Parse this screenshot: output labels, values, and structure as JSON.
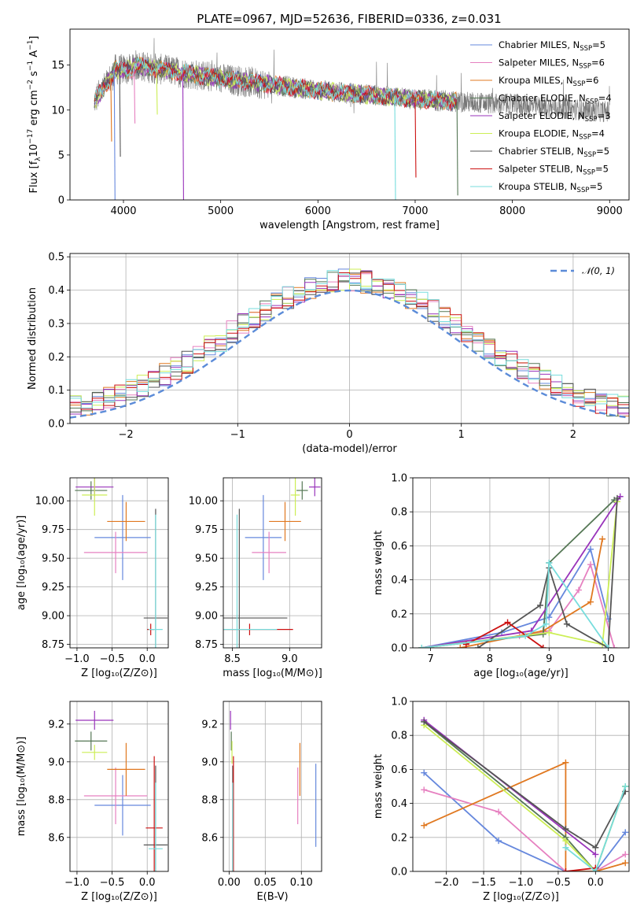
{
  "figure": {
    "title": "PLATE=0967, MJD=52636, FIBERID=0336, z=0.031"
  },
  "colors": [
    "#6688dd",
    "#e680c0",
    "#e07820",
    "#557755",
    "#9933bb",
    "#ccee55",
    "#555555",
    "#cc1111",
    "#77dddd"
  ],
  "chart_data": [
    {
      "id": "spectrum",
      "type": "line",
      "xlabel": "wavelength [Angstrom, rest frame]",
      "ylabel": "Flux [fλ10⁻¹⁷ erg cm⁻² s⁻¹ A⁻¹]",
      "ylabel_parts": {
        "a": "Flux [f",
        "b": "λ",
        "c": "10",
        "d": "−17",
        "e": " erg cm",
        "f": "−2",
        "g": " s",
        "h": "−1",
        "i": " A",
        "j": "−1",
        "k": "]"
      },
      "xlim": [
        3450,
        9200
      ],
      "ylim": [
        0,
        19
      ],
      "xticks": [
        4000,
        5000,
        6000,
        7000,
        8000,
        9000
      ],
      "yticks": [
        0,
        5,
        10,
        15
      ],
      "data_range": [
        3700,
        9000
      ],
      "model_range": [
        3700,
        7430
      ],
      "legend_position": "upper right",
      "legend": [
        {
          "name": "Chabrier MILES, N",
          "sub": "SSP",
          "eq": "=5"
        },
        {
          "name": "Salpeter MILES, N",
          "sub": "SSP",
          "eq": "=6"
        },
        {
          "name": "Kroupa MILES, N",
          "sub": "SSP",
          "eq": "=6"
        },
        {
          "name": "Chabrier ELODIE, N",
          "sub": "SSP",
          "eq": "=4"
        },
        {
          "name": "Salpeter ELODIE, N",
          "sub": "SSP",
          "eq": "=3"
        },
        {
          "name": "Kroupa ELODIE, N",
          "sub": "SSP",
          "eq": "=4"
        },
        {
          "name": "Chabrier STELIB, N",
          "sub": "SSP",
          "eq": "=5"
        },
        {
          "name": "Salpeter STELIB, N",
          "sub": "SSP",
          "eq": "=5"
        },
        {
          "name": "Kroupa STELIB, N",
          "sub": "SSP",
          "eq": "=5"
        }
      ]
    },
    {
      "id": "residuals",
      "type": "step",
      "xlabel": "(data-model)/error",
      "ylabel": "Normed distribution",
      "xlim": [
        -2.5,
        2.5
      ],
      "ylim": [
        0,
        0.51
      ],
      "xticks": [
        -2,
        -1,
        0,
        1,
        2
      ],
      "yticks": [
        0.0,
        0.1,
        0.2,
        0.3,
        0.4,
        0.5
      ],
      "grid": true,
      "legend": "𝒩(0, 1)",
      "legend_position": "upper right",
      "bin_width": 0.1
    },
    {
      "id": "age_vs_Z",
      "type": "errorbar",
      "xlabel": "Z [log₁₀(Z/Z⊙)]",
      "ylabel": "age  [log₁₀(age/yr)]",
      "xlim": [
        -1.1,
        0.3
      ],
      "ylim": [
        8.72,
        10.2
      ],
      "xticks": [
        -1.0,
        -0.5,
        0.0
      ],
      "yticks": [
        8.75,
        9.0,
        9.25,
        9.5,
        9.75,
        10.0
      ],
      "grid": true,
      "points": [
        {
          "x": -0.35,
          "xerr": 0.4,
          "y": 9.68,
          "yerr": 0.37
        },
        {
          "x": -0.45,
          "xerr": 0.45,
          "y": 9.55,
          "yerr": 0.18
        },
        {
          "x": -0.3,
          "xerr": 0.27,
          "y": 9.82,
          "yerr": 0.17
        },
        {
          "x": -0.8,
          "xerr": 0.23,
          "y": 10.09,
          "yerr": 0.08
        },
        {
          "x": -0.75,
          "xerr": 0.27,
          "y": 10.12,
          "yerr": 0.08
        },
        {
          "x": -0.75,
          "xerr": 0.18,
          "y": 10.05,
          "yerr": 0.18
        },
        {
          "x": 0.12,
          "xerr": 0.17,
          "y": 8.98,
          "yerr": 0.95
        },
        {
          "x": 0.05,
          "xerr": 0.05,
          "y": 8.88,
          "yerr": 0.05
        },
        {
          "x": 0.12,
          "xerr": 0.1,
          "y": 8.88,
          "yerr": 1.0
        }
      ]
    },
    {
      "id": "age_vs_mass",
      "type": "errorbar",
      "xlabel": "mass [log₁₀(M/M⊙)]",
      "ylabel": "",
      "xlim": [
        8.42,
        9.28
      ],
      "ylim": [
        8.72,
        10.2
      ],
      "xticks": [
        8.5,
        9.0
      ],
      "yticks": [
        8.75,
        9.0,
        9.25,
        9.5,
        9.75,
        10.0
      ],
      "grid": true,
      "points": [
        {
          "x": 8.77,
          "xerr": 0.16,
          "y": 9.68,
          "yerr": 0.37
        },
        {
          "x": 8.82,
          "xerr": 0.15,
          "y": 9.55,
          "yerr": 0.18
        },
        {
          "x": 8.96,
          "xerr": 0.14,
          "y": 9.82,
          "yerr": 0.17
        },
        {
          "x": 9.11,
          "xerr": 0.05,
          "y": 10.09,
          "yerr": 0.08
        },
        {
          "x": 9.22,
          "xerr": 0.05,
          "y": 10.12,
          "yerr": 0.08
        },
        {
          "x": 9.05,
          "xerr": 0.04,
          "y": 10.05,
          "yerr": 0.18
        },
        {
          "x": 8.56,
          "xerr": 0.42,
          "y": 8.98,
          "yerr": 0.95
        },
        {
          "x": 8.65,
          "xerr": 0.38,
          "y": 8.88,
          "yerr": 0.05
        },
        {
          "x": 8.54,
          "xerr": 0.35,
          "y": 8.88,
          "yerr": 1.0
        }
      ]
    },
    {
      "id": "weight_vs_age",
      "type": "line",
      "xlabel": "age  [log₁₀(age/yr)]",
      "ylabel": "mass weight",
      "xlim": [
        6.7,
        10.35
      ],
      "ylim": [
        0,
        1.0
      ],
      "xticks": [
        7,
        8,
        9,
        10
      ],
      "yticks": [
        0.0,
        0.2,
        0.4,
        0.6,
        0.8,
        1.0
      ],
      "grid": true,
      "series": [
        {
          "x": [
            6.85,
            8.2,
            9.0,
            9.7,
            10.0
          ],
          "y": [
            0.0,
            0.09,
            0.18,
            0.58,
            0.17
          ]
        },
        {
          "x": [
            6.85,
            8.5,
            9.0,
            9.5,
            9.7,
            10.1
          ],
          "y": [
            0.0,
            0.07,
            0.1,
            0.34,
            0.49,
            0.0
          ]
        },
        {
          "x": [
            7.5,
            8.9,
            9.7,
            9.9
          ],
          "y": [
            0.0,
            0.1,
            0.27,
            0.64
          ]
        },
        {
          "x": [
            6.85,
            8.9,
            9.0,
            10.1
          ],
          "y": [
            0.0,
            0.08,
            0.5,
            0.87
          ]
        },
        {
          "x": [
            6.85,
            8.7,
            10.2
          ],
          "y": [
            0.0,
            0.1,
            0.89
          ]
        },
        {
          "x": [
            6.85,
            9.0,
            9.9,
            10.15
          ],
          "y": [
            0.0,
            0.09,
            0.02,
            0.86
          ]
        },
        {
          "x": [
            7.8,
            8.85,
            9.0,
            9.3,
            10.0,
            10.15
          ],
          "y": [
            0.0,
            0.25,
            0.47,
            0.14,
            0.0,
            0.88
          ]
        },
        {
          "x": [
            7.6,
            8.3,
            8.9
          ],
          "y": [
            0.02,
            0.15,
            0.0
          ]
        },
        {
          "x": [
            6.85,
            8.6,
            8.95,
            9.0,
            10.0
          ],
          "y": [
            0.0,
            0.07,
            0.14,
            0.5,
            0.0
          ]
        }
      ]
    },
    {
      "id": "mass_vs_Z",
      "type": "errorbar",
      "xlabel": "Z [log₁₀(Z/Z⊙)]",
      "ylabel": "mass [log₁₀(M/M⊙)]",
      "xlim": [
        -1.1,
        0.3
      ],
      "ylim": [
        8.42,
        9.32
      ],
      "xticks": [
        -1.0,
        -0.5,
        0.0
      ],
      "yticks": [
        8.6,
        8.8,
        9.0,
        9.2
      ],
      "grid": true,
      "points": [
        {
          "x": -0.35,
          "xerr": 0.4,
          "y": 8.77,
          "yerr": 0.16
        },
        {
          "x": -0.45,
          "xerr": 0.45,
          "y": 8.82,
          "yerr": 0.15
        },
        {
          "x": -0.3,
          "xerr": 0.27,
          "y": 8.96,
          "yerr": 0.14
        },
        {
          "x": -0.8,
          "xerr": 0.23,
          "y": 9.11,
          "yerr": 0.05
        },
        {
          "x": -0.75,
          "xerr": 0.27,
          "y": 9.22,
          "yerr": 0.05
        },
        {
          "x": -0.75,
          "xerr": 0.18,
          "y": 9.05,
          "yerr": 0.04
        },
        {
          "x": 0.12,
          "xerr": 0.17,
          "y": 8.56,
          "yerr": 0.42
        },
        {
          "x": 0.1,
          "xerr": 0.12,
          "y": 8.65,
          "yerr": 0.38
        },
        {
          "x": 0.12,
          "xerr": 0.1,
          "y": 8.54,
          "yerr": 0.35
        }
      ]
    },
    {
      "id": "mass_vs_ebv",
      "type": "errorbar",
      "xlabel": "E(B-V)",
      "ylabel": "",
      "xlim": [
        -0.008,
        0.128
      ],
      "ylim": [
        8.42,
        9.32
      ],
      "xticks": [
        0.0,
        0.05,
        0.1
      ],
      "yticks": [
        8.6,
        8.8,
        9.0,
        9.2
      ],
      "grid": true,
      "points": [
        {
          "x": 0.12,
          "y": 8.77,
          "yerr": 0.22
        },
        {
          "x": 0.095,
          "y": 8.82,
          "yerr": 0.15
        },
        {
          "x": 0.098,
          "y": 8.96,
          "yerr": 0.14
        },
        {
          "x": 0.003,
          "y": 9.11,
          "yerr": 0.05
        },
        {
          "x": 0.002,
          "y": 9.22,
          "yerr": 0.05
        },
        {
          "x": 0.004,
          "y": 9.05,
          "yerr": 0.06
        },
        {
          "x": 0.005,
          "y": 8.56,
          "yerr": 0.42
        },
        {
          "x": 0.006,
          "y": 8.65,
          "yerr": 0.38
        },
        {
          "x": 0.005,
          "y": 8.54,
          "yerr": 0.35
        }
      ]
    },
    {
      "id": "weight_vs_Z",
      "type": "line",
      "xlabel": "Z [log₁₀(Z/Z⊙)]",
      "ylabel": "mass weight",
      "xlim": [
        -2.45,
        0.45
      ],
      "ylim": [
        0,
        1.0
      ],
      "xticks": [
        -2.0,
        -1.5,
        -1.0,
        -0.5,
        0.0
      ],
      "yticks": [
        0.0,
        0.2,
        0.4,
        0.6,
        0.8,
        1.0
      ],
      "grid": true,
      "series": [
        {
          "x": [
            -2.3,
            -1.3,
            -0.4,
            0.0,
            0.4
          ],
          "y": [
            0.58,
            0.18,
            0.0,
            0.0,
            0.23
          ]
        },
        {
          "x": [
            -2.3,
            -1.3,
            -0.4,
            0.0,
            0.4
          ],
          "y": [
            0.48,
            0.35,
            0.0,
            0.0,
            0.1
          ]
        },
        {
          "x": [
            -2.3,
            -0.4,
            -0.4,
            0.0,
            0.4
          ],
          "y": [
            0.27,
            0.64,
            0.0,
            0.0,
            0.05
          ]
        },
        {
          "x": [
            -2.3,
            -0.4,
            0.0,
            0.4
          ],
          "y": [
            0.88,
            0.2,
            0.0,
            0.5
          ]
        },
        {
          "x": [
            -2.3,
            0.0
          ],
          "y": [
            0.89,
            0.1
          ]
        },
        {
          "x": [
            -2.3,
            -0.4,
            0.0,
            0.4
          ],
          "y": [
            0.86,
            0.18,
            0.0,
            0.5
          ]
        },
        {
          "x": [
            -2.3,
            -0.4,
            0.0,
            0.4
          ],
          "y": [
            0.88,
            0.25,
            0.14,
            0.47
          ]
        },
        {
          "x": [
            -0.4,
            0.0
          ],
          "y": [
            0.0,
            0.02
          ]
        },
        {
          "x": [
            -0.4,
            0.0,
            0.4
          ],
          "y": [
            0.14,
            0.0,
            0.5
          ]
        }
      ]
    }
  ]
}
